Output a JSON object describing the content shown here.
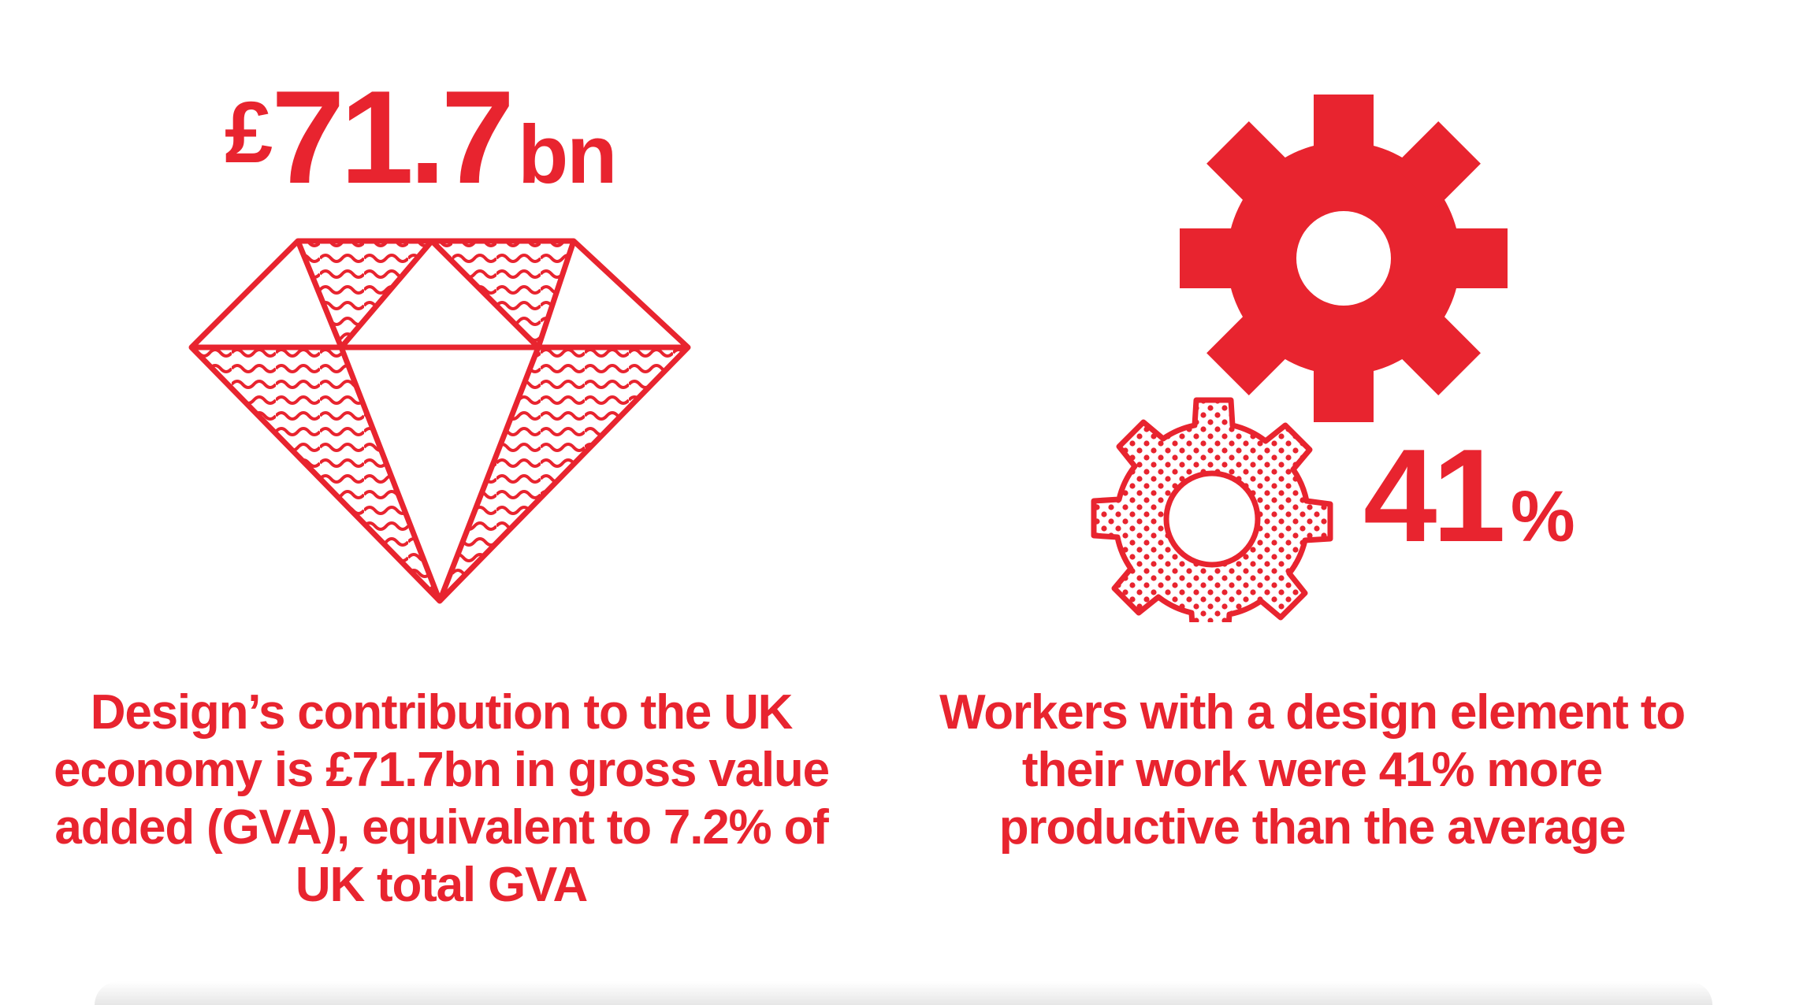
{
  "colors": {
    "accent": "#e8242f",
    "background": "#ffffff"
  },
  "left": {
    "stat": {
      "currency": "£",
      "value": "71.7",
      "unit": "bn"
    },
    "icon": "diamond-icon",
    "caption": "Design’s contribution to the UK economy is £71.7bn in gross value added (GVA), equivalent to 7.2% of UK total GVA"
  },
  "right": {
    "stat": {
      "value": "41",
      "unit": "%"
    },
    "icon": "gears-icon",
    "caption": "Workers with a design element to their work were 41% more productive than the average"
  }
}
